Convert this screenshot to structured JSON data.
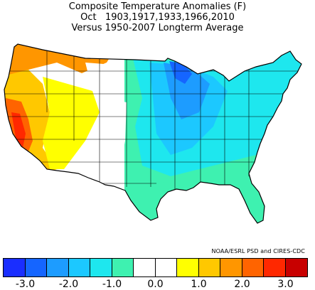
{
  "titles": {
    "line1": "Composite Temperature Anomalies (F)",
    "line2": "Oct   1903,1917,1933,1966,2010",
    "line3": "Versus 1950-2007 Longterm Average"
  },
  "credit": "NOAA/ESRL PSD and CIRES-CDC",
  "colors": {
    "land_outline": "#000000",
    "state_outline": "#000000",
    "background": "#ffffff"
  },
  "color_scale": {
    "swatches": [
      "#1a2eff",
      "#1565ff",
      "#1d9cff",
      "#1cc8ff",
      "#1ee7ee",
      "#3ef1b0",
      "#ffffff",
      "#ffffff",
      "#ffff00",
      "#ffc800",
      "#ff9600",
      "#ff6400",
      "#ff2800",
      "#c80000"
    ],
    "ticks": [
      "-3.0",
      "-2.0",
      "-1.0",
      "0.0",
      "1.0",
      "2.0",
      "3.0"
    ]
  }
}
